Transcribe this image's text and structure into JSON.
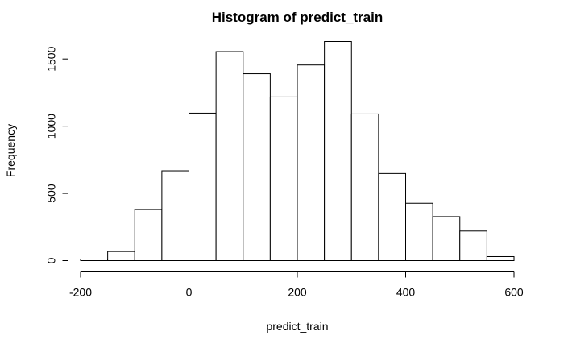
{
  "chart_data": {
    "type": "bar",
    "title": "Histogram of predict_train",
    "xlabel": "predict_train",
    "ylabel": "Frequency",
    "bin_width": 50,
    "bins": [
      {
        "start": -200,
        "end": -150,
        "count": 12
      },
      {
        "start": -150,
        "end": -100,
        "count": 68
      },
      {
        "start": -100,
        "end": -50,
        "count": 380
      },
      {
        "start": -50,
        "end": 0,
        "count": 668
      },
      {
        "start": 0,
        "end": 50,
        "count": 1097
      },
      {
        "start": 50,
        "end": 100,
        "count": 1555
      },
      {
        "start": 100,
        "end": 150,
        "count": 1390
      },
      {
        "start": 150,
        "end": 200,
        "count": 1217
      },
      {
        "start": 200,
        "end": 250,
        "count": 1455
      },
      {
        "start": 250,
        "end": 300,
        "count": 1630
      },
      {
        "start": 300,
        "end": 350,
        "count": 1091
      },
      {
        "start": 350,
        "end": 400,
        "count": 648
      },
      {
        "start": 400,
        "end": 450,
        "count": 427
      },
      {
        "start": 450,
        "end": 500,
        "count": 327
      },
      {
        "start": 500,
        "end": 550,
        "count": 220
      },
      {
        "start": 550,
        "end": 600,
        "count": 30
      }
    ],
    "xlim": [
      -200,
      600
    ],
    "ylim": [
      0,
      1630
    ],
    "x_ticks": [
      {
        "value": -200,
        "label": "-200"
      },
      {
        "value": 0,
        "label": "0"
      },
      {
        "value": 200,
        "label": "200"
      },
      {
        "value": 400,
        "label": "400"
      },
      {
        "value": 600,
        "label": "600"
      }
    ],
    "y_ticks": [
      {
        "value": 0,
        "label": "0"
      },
      {
        "value": 500,
        "label": "500"
      },
      {
        "value": 1000,
        "label": "1000"
      },
      {
        "value": 1500,
        "label": "1500"
      }
    ],
    "grid": false,
    "colors": {
      "bar_fill": "#ffffff",
      "bar_stroke": "#000000",
      "text": "#000000",
      "background": "#ffffff"
    }
  }
}
